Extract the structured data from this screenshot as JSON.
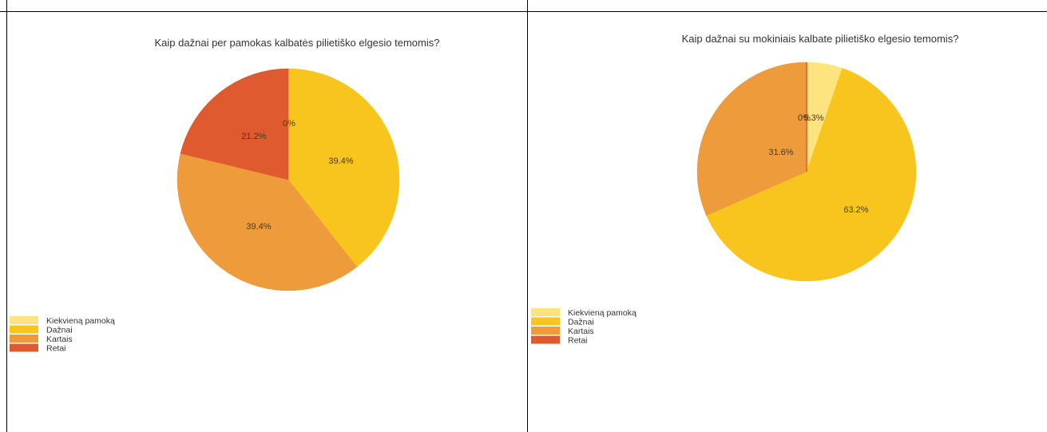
{
  "chart_data": [
    {
      "type": "pie",
      "title": "Kaip dažnai per pamokas kalbatės pilietiško elgesio temomis?",
      "categories": [
        "Kiekvieną pamoką",
        "Dažnai",
        "Kartais",
        "Retai"
      ],
      "values": [
        0,
        39.4,
        39.4,
        21.2
      ],
      "labels": [
        "0%",
        "39.4%",
        "39.4%",
        "21.2%"
      ],
      "colors": [
        "#fde47f",
        "#f7c51e",
        "#ee9b3c",
        "#e05a2f"
      ],
      "legend": "bottom-left",
      "grid": false
    },
    {
      "type": "pie",
      "title": "Kaip dažnai su mokiniais kalbate pilietiško elgesio temomis?",
      "categories": [
        "Kiekvieną pamoką",
        "Dažnai",
        "Kartais",
        "Retai"
      ],
      "values": [
        5.3,
        63.2,
        31.6,
        0
      ],
      "labels": [
        "5.3%",
        "63.2%",
        "31.6%",
        "0%"
      ],
      "colors": [
        "#fde47f",
        "#f7c51e",
        "#ee9b3c",
        "#e05a2f"
      ],
      "legend": "bottom-left",
      "grid": false
    }
  ]
}
